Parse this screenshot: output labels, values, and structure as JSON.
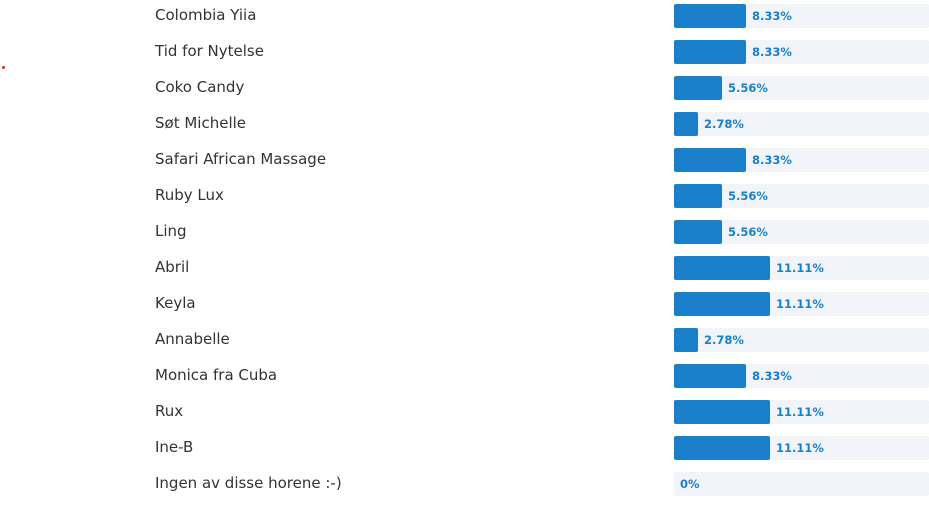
{
  "accent_color": "#1a7fcb",
  "options": [
    {
      "label": "Colombia Yiia",
      "percent": 8.33,
      "percent_text": "8.33%"
    },
    {
      "label": "Tid for Nytelse",
      "percent": 8.33,
      "percent_text": "8.33%"
    },
    {
      "label": "Coko Candy",
      "percent": 5.56,
      "percent_text": "5.56%"
    },
    {
      "label": "Søt Michelle",
      "percent": 2.78,
      "percent_text": "2.78%"
    },
    {
      "label": "Safari African Massage",
      "percent": 8.33,
      "percent_text": "8.33%"
    },
    {
      "label": "Ruby Lux",
      "percent": 5.56,
      "percent_text": "5.56%"
    },
    {
      "label": "Ling",
      "percent": 5.56,
      "percent_text": "5.56%"
    },
    {
      "label": "Abril",
      "percent": 11.11,
      "percent_text": "11.11%"
    },
    {
      "label": "Keyla",
      "percent": 11.11,
      "percent_text": "11.11%"
    },
    {
      "label": "Annabelle",
      "percent": 2.78,
      "percent_text": "2.78%"
    },
    {
      "label": "Monica fra Cuba",
      "percent": 8.33,
      "percent_text": "8.33%"
    },
    {
      "label": "Rux",
      "percent": 11.11,
      "percent_text": "11.11%"
    },
    {
      "label": "Ine-B",
      "percent": 11.11,
      "percent_text": "11.11%"
    },
    {
      "label": "Ingen av disse horene :-)",
      "percent": 0,
      "percent_text": "0%"
    }
  ]
}
